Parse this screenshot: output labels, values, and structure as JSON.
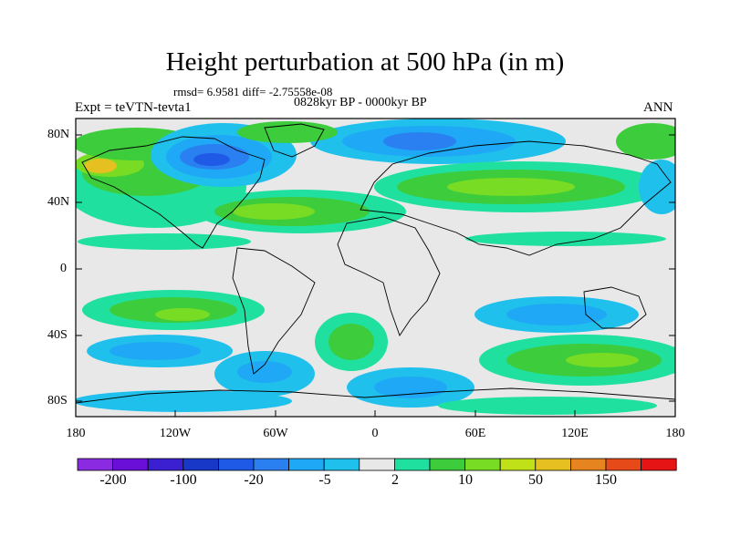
{
  "title": "Height perturbation at 500 hPa (in m)",
  "stats": "rmsd= 6.9581 diff= -2.75558e-08",
  "period": "0828kyr BP - 0000kyr BP",
  "experiment": "Expt = teVTN-tevta1",
  "season": "ANN",
  "lat_labels": [
    "80N",
    "40N",
    "0",
    "40S",
    "80S"
  ],
  "lon_labels": [
    "180",
    "120W",
    "60W",
    "0",
    "60E",
    "120E",
    "180"
  ],
  "colorbar": {
    "colors": [
      "#8a2be2",
      "#6a0fd8",
      "#3a20d0",
      "#1838c8",
      "#1e5ae6",
      "#2a80f0",
      "#1ea8f5",
      "#20c0ec",
      "#e8e8e8",
      "#20e0a0",
      "#3ccc3c",
      "#78dc24",
      "#c0e018",
      "#e6c020",
      "#e68420",
      "#e64a18",
      "#e61414"
    ],
    "labels": [
      "-200",
      "-100",
      "-20",
      "-5",
      "2",
      "10",
      "50",
      "150"
    ]
  }
}
